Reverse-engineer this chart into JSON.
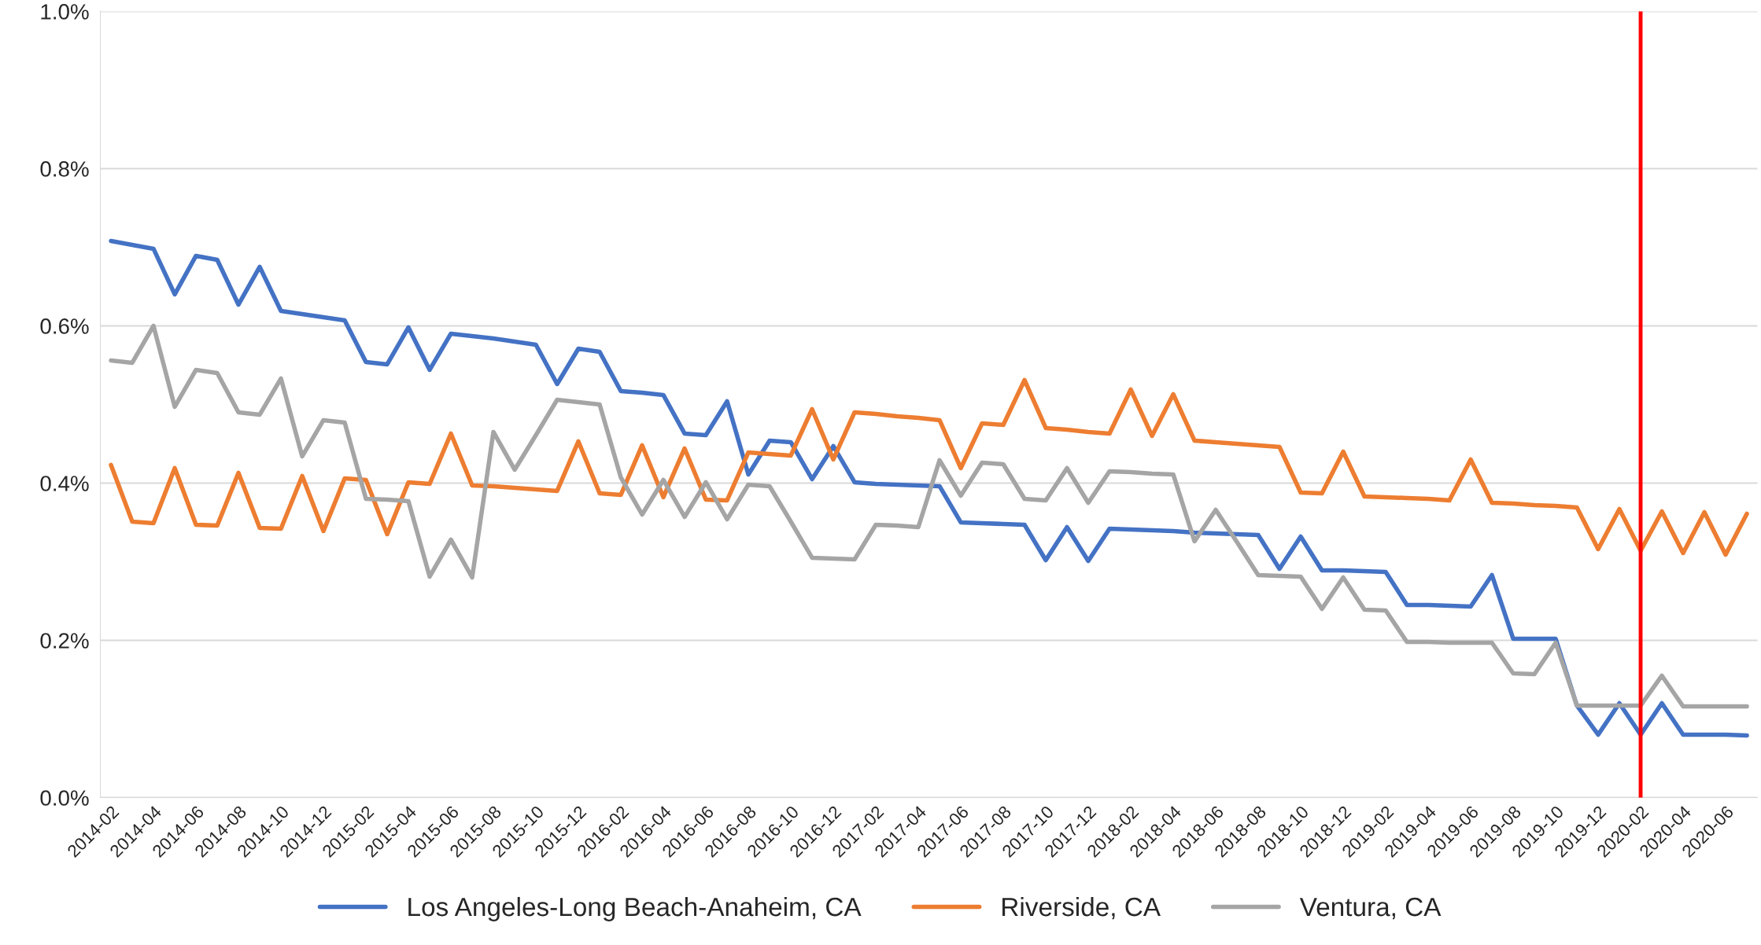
{
  "chart_data": {
    "type": "line",
    "categories": [
      "2014-02",
      null,
      "2014-04",
      null,
      "2014-06",
      null,
      "2014-08",
      null,
      "2014-10",
      null,
      "2014-12",
      null,
      "2015-02",
      null,
      "2015-04",
      null,
      "2015-06",
      null,
      "2015-08",
      null,
      "2015-10",
      null,
      "2015-12",
      null,
      "2016-02",
      null,
      "2016-04",
      null,
      "2016-06",
      null,
      "2016-08",
      null,
      "2016-10",
      null,
      "2016-12",
      null,
      "2017-02",
      null,
      "2017-04",
      null,
      "2017-06",
      null,
      "2017-08",
      null,
      "2017-10",
      null,
      "2017-12",
      null,
      "2018-02",
      null,
      "2018-04",
      null,
      "2018-06",
      null,
      "2018-08",
      null,
      "2018-10",
      null,
      "2018-12",
      null,
      "2019-02",
      null,
      "2019-04",
      null,
      "2019-06",
      null,
      "2019-08",
      null,
      "2019-10",
      null,
      "2019-12",
      null,
      "2020-02",
      null,
      "2020-04",
      null,
      "2020-06",
      null
    ],
    "series": [
      {
        "name": "Los Angeles-Long Beach-Anaheim, CA",
        "color": "#4472c4",
        "values": [
          0.708,
          0.703,
          0.698,
          0.64,
          0.689,
          0.684,
          0.627,
          0.675,
          0.619,
          0.615,
          0.611,
          0.607,
          0.554,
          0.551,
          0.598,
          0.544,
          0.59,
          0.587,
          0.584,
          0.58,
          0.576,
          0.526,
          0.571,
          0.567,
          0.517,
          0.515,
          0.512,
          0.463,
          0.461,
          0.504,
          0.411,
          0.454,
          0.452,
          0.405,
          0.447,
          0.401,
          0.399,
          0.398,
          0.397,
          0.396,
          0.35,
          0.349,
          0.348,
          0.347,
          0.302,
          0.344,
          0.301,
          0.342,
          0.341,
          0.34,
          0.339,
          0.337,
          0.336,
          0.335,
          0.334,
          0.291,
          0.332,
          0.289,
          0.289,
          0.288,
          0.287,
          0.245,
          0.245,
          0.244,
          0.243,
          0.283,
          0.202,
          0.202,
          0.202,
          0.117,
          0.08,
          0.12,
          0.08,
          0.12,
          0.08,
          0.08,
          0.08,
          0.079
        ]
      },
      {
        "name": "Riverside, CA",
        "color": "#ed7d31",
        "values": [
          0.423,
          0.351,
          0.349,
          0.419,
          0.347,
          0.346,
          0.413,
          0.343,
          0.342,
          0.409,
          0.339,
          0.406,
          0.404,
          0.335,
          0.401,
          0.399,
          0.463,
          0.397,
          0.396,
          0.394,
          0.392,
          0.39,
          0.453,
          0.387,
          0.385,
          0.448,
          0.382,
          0.444,
          0.379,
          0.378,
          0.439,
          0.437,
          0.435,
          0.494,
          0.43,
          0.49,
          0.488,
          0.485,
          0.483,
          0.48,
          0.419,
          0.476,
          0.474,
          0.531,
          0.47,
          0.468,
          0.465,
          0.463,
          0.519,
          0.46,
          0.513,
          0.454,
          0.452,
          0.45,
          0.448,
          0.446,
          0.388,
          0.387,
          0.44,
          0.383,
          0.382,
          0.381,
          0.38,
          0.378,
          0.43,
          0.375,
          0.374,
          0.372,
          0.371,
          0.369,
          0.316,
          0.367,
          0.314,
          0.364,
          0.311,
          0.363,
          0.309,
          0.361
        ]
      },
      {
        "name": "Ventura, CA",
        "color": "#a5a5a5",
        "values": [
          0.556,
          0.553,
          0.6,
          0.497,
          0.544,
          0.54,
          0.49,
          0.487,
          0.533,
          0.434,
          0.48,
          0.477,
          0.38,
          0.379,
          0.377,
          0.281,
          0.328,
          0.28,
          0.465,
          0.417,
          0.461,
          0.506,
          0.503,
          0.5,
          0.407,
          0.36,
          0.404,
          0.357,
          0.401,
          0.354,
          0.398,
          0.396,
          0.351,
          0.305,
          0.304,
          0.303,
          0.347,
          0.346,
          0.344,
          0.429,
          0.384,
          0.426,
          0.424,
          0.38,
          0.378,
          0.419,
          0.375,
          0.415,
          0.414,
          0.412,
          0.411,
          0.326,
          0.366,
          0.325,
          0.283,
          0.282,
          0.281,
          0.24,
          0.28,
          0.239,
          0.238,
          0.198,
          0.198,
          0.197,
          0.197,
          0.197,
          0.158,
          0.157,
          0.197,
          0.117,
          0.117,
          0.117,
          0.117,
          0.155,
          0.116,
          0.116,
          0.116,
          0.116
        ]
      }
    ],
    "ylim": [
      0,
      1.0
    ],
    "yticks": [
      {
        "value": 0.0,
        "label": "0.0%"
      },
      {
        "value": 0.2,
        "label": "0.2%"
      },
      {
        "value": 0.4,
        "label": "0.4%"
      },
      {
        "value": 0.6,
        "label": "0.6%"
      },
      {
        "value": 0.8,
        "label": "0.8%"
      },
      {
        "value": 1.0,
        "label": "1.0%"
      }
    ],
    "ref_lines": [
      {
        "axis": "x",
        "value": "2020-02",
        "color": "#ff0000"
      }
    ],
    "grid": "y",
    "legend": "bottom",
    "marker": "none",
    "line_style": "solid"
  }
}
